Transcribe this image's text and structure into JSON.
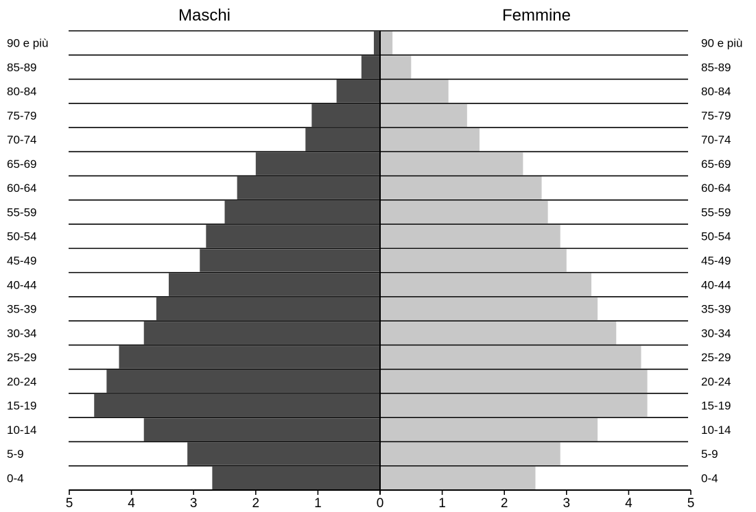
{
  "chart_data": {
    "type": "bar",
    "orientation": "horizontal",
    "layout": "population-pyramid",
    "categories": [
      "0-4",
      "5-9",
      "10-14",
      "15-19",
      "20-24",
      "25-29",
      "30-34",
      "35-39",
      "40-44",
      "45-49",
      "50-54",
      "55-59",
      "60-64",
      "65-69",
      "70-74",
      "75-79",
      "80-84",
      "85-89",
      "90 e più"
    ],
    "series": [
      {
        "name": "Maschi",
        "side": "left",
        "color": "#4a4a4a",
        "values": [
          2.7,
          3.1,
          3.8,
          4.6,
          4.4,
          4.2,
          3.8,
          3.6,
          3.4,
          2.9,
          2.8,
          2.5,
          2.3,
          2.0,
          1.2,
          1.1,
          0.7,
          0.3,
          0.1
        ]
      },
      {
        "name": "Femmine",
        "side": "right",
        "color": "#c8c8c8",
        "values": [
          2.5,
          2.9,
          3.5,
          4.3,
          4.3,
          4.2,
          3.8,
          3.5,
          3.4,
          3.0,
          2.9,
          2.7,
          2.6,
          2.3,
          1.6,
          1.4,
          1.1,
          0.5,
          0.2
        ]
      }
    ],
    "xticks": [
      "5",
      "4",
      "3",
      "2",
      "1",
      "0",
      "1",
      "2",
      "3",
      "4",
      "5"
    ],
    "xlim": [
      -5,
      5
    ],
    "grid": "horizontal",
    "legend": "top"
  }
}
